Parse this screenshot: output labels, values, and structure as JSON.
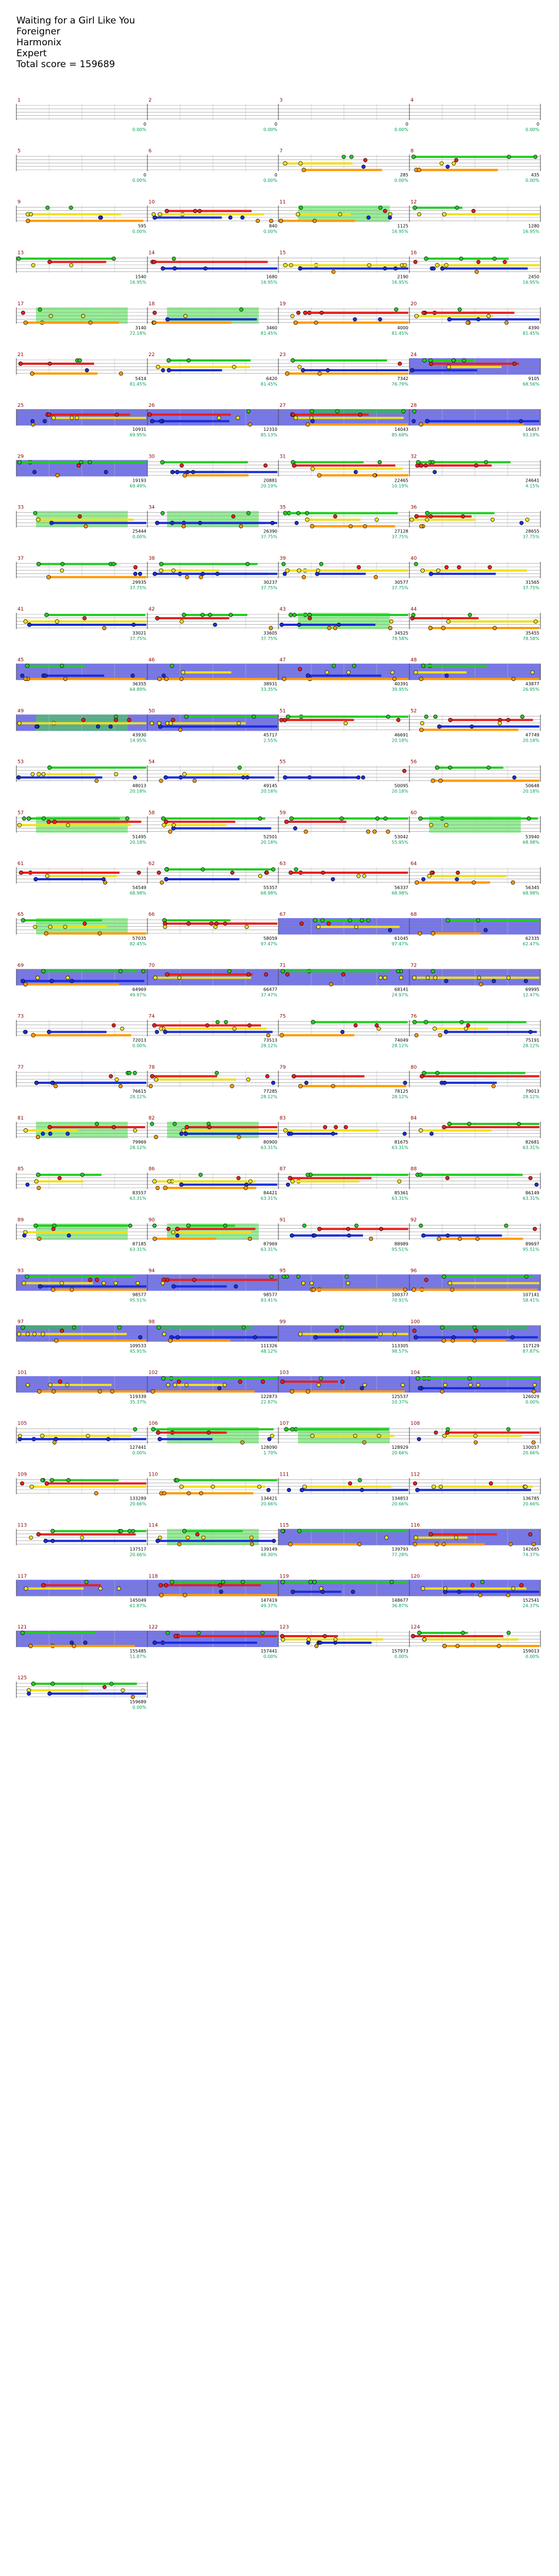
{
  "header": {
    "title": "Waiting for a Girl Like You",
    "artist": "Foreigner",
    "charter": "Harmonix",
    "difficulty": "Expert",
    "total_score_text": "Total score = 159689"
  },
  "colors": {
    "red": "#e62020",
    "yellow": "#f0e020",
    "blue": "#1a2ed8",
    "orange": "#ff9a00",
    "green": "#22cc22",
    "purple": "#8a2b8a",
    "star_power_fill": "#4848e6",
    "solo_fill": "#40e040",
    "measure_num": "#8b0000",
    "score_text": "#000000",
    "percent_text": "#00a050"
  },
  "chart_data": {
    "type": "other",
    "description_items": [
      "measures",
      "notes",
      "sustains",
      "scores"
    ],
    "measures": [
      {
        "n": "1",
        "score": "0",
        "pct": "0.00%"
      },
      {
        "n": "2",
        "score": "0",
        "pct": "0.00%"
      },
      {
        "n": "3",
        "score": "0",
        "pct": "0.00%"
      },
      {
        "n": "4",
        "score": "0",
        "pct": "0.00%"
      },
      {
        "n": "5",
        "score": "0",
        "pct": "0.00%"
      },
      {
        "n": "6",
        "score": "0",
        "pct": "0.00%"
      },
      {
        "n": "7",
        "score": "285",
        "pct": "0.00%"
      },
      {
        "n": "8",
        "score": "435",
        "pct": "0.00%"
      },
      {
        "n": "9",
        "score": "595",
        "pct": "0.00%"
      },
      {
        "n": "10",
        "score": "840",
        "pct": "0.00%"
      },
      {
        "n": "11",
        "score": "1125",
        "pct": "16.95%"
      },
      {
        "n": "12",
        "score": "1280",
        "pct": "16.95%"
      },
      {
        "n": "13",
        "score": "1540",
        "pct": "16.95%"
      },
      {
        "n": "14",
        "score": "1680",
        "pct": "16.95%"
      },
      {
        "n": "15",
        "score": "2190",
        "pct": "16.95%"
      },
      {
        "n": "16",
        "score": "2450",
        "pct": "16.95%"
      },
      {
        "n": "17",
        "score": "3140",
        "pct": "72.18%"
      },
      {
        "n": "18",
        "score": "3460",
        "pct": "81.45%"
      },
      {
        "n": "19",
        "score": "4000",
        "pct": "81.45%"
      },
      {
        "n": "20",
        "score": "4390",
        "pct": "81.45%"
      },
      {
        "n": "21",
        "score": "5414",
        "pct": "81.45%"
      },
      {
        "n": "22",
        "score": "6420",
        "pct": "81.45%"
      },
      {
        "n": "23",
        "score": "7342",
        "pct": "76.79%"
      },
      {
        "n": "24",
        "score": "9105",
        "pct": "68.56%"
      },
      {
        "n": "25",
        "score": "10931",
        "pct": "69.95%"
      },
      {
        "n": "26",
        "score": "12310",
        "pct": "85.13%"
      },
      {
        "n": "27",
        "score": "14043",
        "pct": "85.69%"
      },
      {
        "n": "28",
        "score": "16457",
        "pct": "93.19%"
      },
      {
        "n": "29",
        "score": "19193",
        "pct": "69.49%"
      },
      {
        "n": "30",
        "score": "20881",
        "pct": "20.19%"
      },
      {
        "n": "31",
        "score": "22465",
        "pct": "10.19%"
      },
      {
        "n": "32",
        "score": "24641",
        "pct": "4.15%"
      },
      {
        "n": "33",
        "score": "25444",
        "pct": "0.00%"
      },
      {
        "n": "34",
        "score": "26390",
        "pct": "37.75%"
      },
      {
        "n": "35",
        "score": "27128",
        "pct": "37.75%"
      },
      {
        "n": "36",
        "score": "28655",
        "pct": "37.75%"
      },
      {
        "n": "37",
        "score": "29935",
        "pct": "37.75%"
      },
      {
        "n": "38",
        "score": "30237",
        "pct": "37.75%"
      },
      {
        "n": "39",
        "score": "30577",
        "pct": "37.75%"
      },
      {
        "n": "40",
        "score": "31565",
        "pct": "37.75%"
      },
      {
        "n": "41",
        "score": "33021",
        "pct": "37.75%"
      },
      {
        "n": "42",
        "score": "33605",
        "pct": "37.75%"
      },
      {
        "n": "43",
        "score": "34525",
        "pct": "78.58%"
      },
      {
        "n": "44",
        "score": "35455",
        "pct": "78.58%"
      },
      {
        "n": "45",
        "score": "36355",
        "pct": "64.89%"
      },
      {
        "n": "46",
        "score": "38931",
        "pct": "33.35%"
      },
      {
        "n": "47",
        "score": "40391",
        "pct": "39.95%"
      },
      {
        "n": "48",
        "score": "43877",
        "pct": "26.95%"
      },
      {
        "n": "49",
        "score": "43930",
        "pct": "14.95%"
      },
      {
        "n": "50",
        "score": "45717",
        "pct": "2.55%"
      },
      {
        "n": "51",
        "score": "46691",
        "pct": "20.18%"
      },
      {
        "n": "52",
        "score": "47749",
        "pct": "20.18%"
      },
      {
        "n": "53",
        "score": "48013",
        "pct": "20.18%"
      },
      {
        "n": "54",
        "score": "49145",
        "pct": "20.18%"
      },
      {
        "n": "55",
        "score": "50095",
        "pct": "20.18%"
      },
      {
        "n": "56",
        "score": "50648",
        "pct": "20.18%"
      },
      {
        "n": "57",
        "score": "51495",
        "pct": "20.18%"
      },
      {
        "n": "58",
        "score": "52501",
        "pct": "20.18%"
      },
      {
        "n": "59",
        "score": "53042",
        "pct": "55.95%"
      },
      {
        "n": "60",
        "score": "53940",
        "pct": "68.98%"
      },
      {
        "n": "61",
        "score": "54549",
        "pct": "68.98%"
      },
      {
        "n": "62",
        "score": "55357",
        "pct": "68.98%"
      },
      {
        "n": "63",
        "score": "56337",
        "pct": "68.98%"
      },
      {
        "n": "64",
        "score": "56345",
        "pct": "68.98%"
      },
      {
        "n": "65",
        "score": "57035",
        "pct": "82.45%"
      },
      {
        "n": "66",
        "score": "58059",
        "pct": "97.47%"
      },
      {
        "n": "67",
        "score": "61045",
        "pct": "97.47%"
      },
      {
        "n": "68",
        "score": "62335",
        "pct": "62.47%"
      },
      {
        "n": "69",
        "score": "64969",
        "pct": "49.97%"
      },
      {
        "n": "70",
        "score": "66477",
        "pct": "37.47%"
      },
      {
        "n": "71",
        "score": "68141",
        "pct": "24.97%"
      },
      {
        "n": "72",
        "score": "69995",
        "pct": "12.47%"
      },
      {
        "n": "73",
        "score": "72013",
        "pct": "0.00%"
      },
      {
        "n": "74",
        "score": "73513",
        "pct": "28.12%"
      },
      {
        "n": "75",
        "score": "74049",
        "pct": "28.12%"
      },
      {
        "n": "76",
        "score": "75191",
        "pct": "28.12%"
      },
      {
        "n": "77",
        "score": "76615",
        "pct": "28.12%"
      },
      {
        "n": "78",
        "score": "77285",
        "pct": "28.12%"
      },
      {
        "n": "79",
        "score": "78125",
        "pct": "28.12%"
      },
      {
        "n": "80",
        "score": "79013",
        "pct": "28.12%"
      },
      {
        "n": "81",
        "score": "79969",
        "pct": "28.12%"
      },
      {
        "n": "82",
        "score": "80900",
        "pct": "63.31%"
      },
      {
        "n": "83",
        "score": "81675",
        "pct": "63.31%"
      },
      {
        "n": "84",
        "score": "82681",
        "pct": "63.31%"
      },
      {
        "n": "85",
        "score": "83557",
        "pct": "63.31%"
      },
      {
        "n": "86",
        "score": "84421",
        "pct": "63.31%"
      },
      {
        "n": "87",
        "score": "85361",
        "pct": "63.31%"
      },
      {
        "n": "88",
        "score": "86149",
        "pct": "63.31%"
      },
      {
        "n": "89",
        "score": "87185",
        "pct": "63.31%"
      },
      {
        "n": "90",
        "score": "87969",
        "pct": "63.31%"
      },
      {
        "n": "91",
        "score": "88989",
        "pct": "95.51%"
      },
      {
        "n": "92",
        "score": "89697",
        "pct": "95.51%"
      },
      {
        "n": "93",
        "score": "98577",
        "pct": "95.51%"
      },
      {
        "n": "94",
        "score": "98577",
        "pct": "83.41%"
      },
      {
        "n": "95",
        "score": "100377",
        "pct": "70.91%"
      },
      {
        "n": "96",
        "score": "107141",
        "pct": "58.41%"
      },
      {
        "n": "97",
        "score": "109533",
        "pct": "45.91%"
      },
      {
        "n": "98",
        "score": "111326",
        "pct": "48.12%"
      },
      {
        "n": "99",
        "score": "113305",
        "pct": "98.57%"
      },
      {
        "n": "100",
        "score": "117129",
        "pct": "87.87%"
      },
      {
        "n": "101",
        "score": "119339",
        "pct": "35.37%"
      },
      {
        "n": "102",
        "score": "122873",
        "pct": "22.87%"
      },
      {
        "n": "103",
        "score": "125537",
        "pct": "10.37%"
      },
      {
        "n": "104",
        "score": "126029",
        "pct": "0.00%"
      },
      {
        "n": "105",
        "score": "127441",
        "pct": "0.00%"
      },
      {
        "n": "106",
        "score": "128090",
        "pct": "1.70%"
      },
      {
        "n": "107",
        "score": "128929",
        "pct": "20.66%"
      },
      {
        "n": "108",
        "score": "130057",
        "pct": "20.66%"
      },
      {
        "n": "109",
        "score": "133289",
        "pct": "20.66%"
      },
      {
        "n": "110",
        "score": "134421",
        "pct": "20.66%"
      },
      {
        "n": "111",
        "score": "134853",
        "pct": "20.66%"
      },
      {
        "n": "112",
        "score": "136785",
        "pct": "20.66%"
      },
      {
        "n": "113",
        "score": "137517",
        "pct": "20.66%"
      },
      {
        "n": "114",
        "score": "139149",
        "pct": "48.30%"
      },
      {
        "n": "115",
        "score": "139793",
        "pct": "77.28%"
      },
      {
        "n": "116",
        "score": "142685",
        "pct": "74.37%"
      },
      {
        "n": "117",
        "score": "145049",
        "pct": "61.87%"
      },
      {
        "n": "118",
        "score": "147419",
        "pct": "49.37%"
      },
      {
        "n": "119",
        "score": "148677",
        "pct": "36.87%"
      },
      {
        "n": "120",
        "score": "152541",
        "pct": "24.37%"
      },
      {
        "n": "121",
        "score": "155485",
        "pct": "11.87%"
      },
      {
        "n": "122",
        "score": "157441",
        "pct": "0.00%"
      },
      {
        "n": "123",
        "score": "157973",
        "pct": "0.00%"
      },
      {
        "n": "124",
        "score": "159013",
        "pct": "0.00%"
      },
      {
        "n": "125",
        "score": "159689",
        "pct": "0.00%"
      }
    ]
  }
}
